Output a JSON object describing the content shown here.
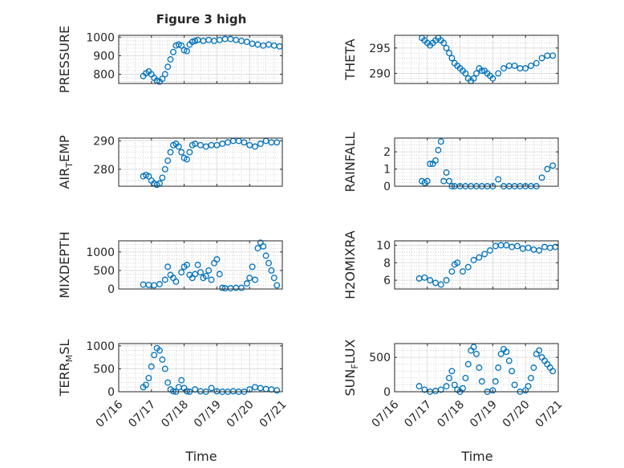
{
  "figure": {
    "title": "Figure 3 high",
    "xlabel": "Time",
    "marker_color": "#0072bd"
  },
  "chart_data": [
    {
      "type": "scatter",
      "ylabel_parts": [
        {
          "t": "PRESSURE"
        }
      ],
      "ylim": [
        750,
        1010
      ],
      "yticks": [
        800,
        900,
        1000
      ],
      "xlim": [
        "07/16",
        "07/21"
      ],
      "xticks": [
        "07/16",
        "07/17",
        "07/18",
        "07/19",
        "07/20",
        "07/21"
      ],
      "x": [
        "07/16 18:00",
        "07/16 20:00",
        "07/16 22:00",
        "07/17 00:00",
        "07/17 02:00",
        "07/17 04:00",
        "07/17 06:00",
        "07/17 08:00",
        "07/17 10:00",
        "07/17 12:00",
        "07/17 14:00",
        "07/17 16:00",
        "07/17 18:00",
        "07/17 20:00",
        "07/17 22:00",
        "07/18 00:00",
        "07/18 02:00",
        "07/18 04:00",
        "07/18 06:00",
        "07/18 08:00",
        "07/18 10:00",
        "07/18 14:00",
        "07/18 18:00",
        "07/18 22:00",
        "07/19 02:00",
        "07/19 06:00",
        "07/19 10:00",
        "07/19 14:00",
        "07/19 18:00",
        "07/19 22:00",
        "07/20 02:00",
        "07/20 06:00",
        "07/20 10:00",
        "07/20 14:00",
        "07/20 18:00",
        "07/20 22:00"
      ],
      "y": [
        790,
        805,
        815,
        800,
        780,
        765,
        760,
        775,
        800,
        840,
        880,
        920,
        955,
        960,
        955,
        930,
        925,
        960,
        975,
        980,
        985,
        980,
        985,
        980,
        985,
        990,
        990,
        985,
        980,
        975,
        965,
        960,
        955,
        960,
        955,
        950
      ]
    },
    {
      "type": "scatter",
      "ylabel_parts": [
        {
          "t": "THETA"
        }
      ],
      "ylim": [
        288,
        297.5
      ],
      "yticks": [
        290,
        295
      ],
      "xlim": [
        "07/16",
        "07/21"
      ],
      "xticks": [
        "07/16",
        "07/17",
        "07/18",
        "07/19",
        "07/20",
        "07/21"
      ],
      "x": [
        "07/16 20:00",
        "07/16 22:00",
        "07/17 00:00",
        "07/17 02:00",
        "07/17 04:00",
        "07/17 06:00",
        "07/17 08:00",
        "07/17 10:00",
        "07/17 12:00",
        "07/17 14:00",
        "07/17 16:00",
        "07/17 18:00",
        "07/17 20:00",
        "07/17 22:00",
        "07/18 00:00",
        "07/18 02:00",
        "07/18 04:00",
        "07/18 06:00",
        "07/18 08:00",
        "07/18 10:00",
        "07/18 12:00",
        "07/18 14:00",
        "07/18 16:00",
        "07/18 18:00",
        "07/18 20:00",
        "07/18 22:00",
        "07/19 00:00",
        "07/19 04:00",
        "07/19 08:00",
        "07/19 12:00",
        "07/19 16:00",
        "07/19 20:00",
        "07/20 00:00",
        "07/20 04:00",
        "07/20 08:00",
        "07/20 12:00",
        "07/20 16:00",
        "07/20 20:00"
      ],
      "y": [
        297,
        296.5,
        296,
        295.5,
        296,
        296.5,
        297,
        296.5,
        296,
        295,
        294,
        293,
        292,
        291.5,
        291,
        290.5,
        290,
        289,
        288.5,
        289,
        290,
        291,
        290.5,
        290.5,
        290,
        289.5,
        289,
        290,
        291,
        291.5,
        291.5,
        291,
        291,
        291.5,
        292,
        293,
        293.5,
        293.5
      ]
    },
    {
      "type": "scatter",
      "ylabel_parts": [
        {
          "t": "AIR"
        },
        {
          "t": "T",
          "sub": true
        },
        {
          "t": "EMP"
        }
      ],
      "ylim": [
        274,
        291
      ],
      "yticks": [
        280,
        290
      ],
      "xlim": [
        "07/16",
        "07/21"
      ],
      "xticks": [
        "07/16",
        "07/17",
        "07/18",
        "07/19",
        "07/20",
        "07/21"
      ],
      "x": [
        "07/16 18:00",
        "07/16 20:00",
        "07/16 22:00",
        "07/17 00:00",
        "07/17 02:00",
        "07/17 04:00",
        "07/17 06:00",
        "07/17 08:00",
        "07/17 10:00",
        "07/17 12:00",
        "07/17 14:00",
        "07/17 16:00",
        "07/17 18:00",
        "07/17 20:00",
        "07/17 22:00",
        "07/18 00:00",
        "07/18 02:00",
        "07/18 04:00",
        "07/18 06:00",
        "07/18 08:00",
        "07/18 12:00",
        "07/18 16:00",
        "07/18 20:00",
        "07/19 00:00",
        "07/19 04:00",
        "07/19 08:00",
        "07/19 12:00",
        "07/19 16:00",
        "07/19 20:00",
        "07/20 00:00",
        "07/20 04:00",
        "07/20 08:00",
        "07/20 12:00",
        "07/20 16:00",
        "07/20 20:00"
      ],
      "y": [
        277.5,
        278,
        277.5,
        276,
        275,
        274.5,
        275,
        277,
        280,
        283,
        286,
        288.5,
        289,
        288,
        286,
        284,
        283.5,
        286,
        288.5,
        289,
        288.5,
        288,
        288.5,
        288.5,
        289,
        289.5,
        290,
        290,
        289.5,
        288.5,
        288,
        289,
        290,
        289.5,
        289.5
      ]
    },
    {
      "type": "scatter",
      "ylabel_parts": [
        {
          "t": "RAINFALL"
        }
      ],
      "ylim": [
        0,
        2.8
      ],
      "yticks": [
        0,
        1,
        2
      ],
      "xlim": [
        "07/16",
        "07/21"
      ],
      "xticks": [
        "07/16",
        "07/17",
        "07/18",
        "07/19",
        "07/20",
        "07/21"
      ],
      "x": [
        "07/16 20:00",
        "07/16 22:00",
        "07/17 00:00",
        "07/17 02:00",
        "07/17 04:00",
        "07/17 06:00",
        "07/17 08:00",
        "07/17 10:00",
        "07/17 12:00",
        "07/17 14:00",
        "07/17 16:00",
        "07/17 18:00",
        "07/17 20:00",
        "07/18 00:00",
        "07/18 04:00",
        "07/18 08:00",
        "07/18 12:00",
        "07/18 16:00",
        "07/18 20:00",
        "07/19 00:00",
        "07/19 04:00",
        "07/19 08:00",
        "07/19 12:00",
        "07/19 16:00",
        "07/19 20:00",
        "07/20 00:00",
        "07/20 04:00",
        "07/20 08:00",
        "07/20 12:00",
        "07/20 16:00",
        "07/20 20:00"
      ],
      "y": [
        0.3,
        0.2,
        0.3,
        1.3,
        1.3,
        1.5,
        2.1,
        2.6,
        0.3,
        0.8,
        0.3,
        0,
        0,
        0,
        0,
        0,
        0,
        0,
        0,
        0,
        0.4,
        0,
        0,
        0,
        0,
        0,
        0,
        0,
        0.5,
        1,
        1.2
      ]
    },
    {
      "type": "scatter",
      "ylabel_parts": [
        {
          "t": "MIXDEPTH"
        }
      ],
      "ylim": [
        0,
        1300
      ],
      "yticks": [
        0,
        500,
        1000
      ],
      "xlim": [
        "07/16",
        "07/21"
      ],
      "xticks": [
        "07/16",
        "07/17",
        "07/18",
        "07/19",
        "07/20",
        "07/21"
      ],
      "x": [
        "07/16 18:00",
        "07/16 22:00",
        "07/17 02:00",
        "07/17 06:00",
        "07/17 10:00",
        "07/17 12:00",
        "07/17 14:00",
        "07/17 16:00",
        "07/17 18:00",
        "07/17 22:00",
        "07/18 00:00",
        "07/18 02:00",
        "07/18 04:00",
        "07/18 06:00",
        "07/18 08:00",
        "07/18 10:00",
        "07/18 12:00",
        "07/18 14:00",
        "07/18 16:00",
        "07/18 18:00",
        "07/18 20:00",
        "07/18 22:00",
        "07/19 00:00",
        "07/19 02:00",
        "07/19 04:00",
        "07/19 06:00",
        "07/19 10:00",
        "07/19 14:00",
        "07/19 18:00",
        "07/19 22:00",
        "07/20 00:00",
        "07/20 02:00",
        "07/20 04:00",
        "07/20 06:00",
        "07/20 08:00",
        "07/20 10:00",
        "07/20 12:00",
        "07/20 14:00",
        "07/20 16:00",
        "07/20 18:00",
        "07/20 20:00"
      ],
      "y": [
        120,
        110,
        100,
        130,
        250,
        600,
        380,
        300,
        200,
        450,
        600,
        650,
        380,
        300,
        400,
        650,
        450,
        300,
        350,
        500,
        250,
        700,
        800,
        400,
        30,
        20,
        20,
        30,
        30,
        150,
        300,
        600,
        250,
        1100,
        1250,
        1150,
        900,
        700,
        500,
        300,
        100
      ]
    },
    {
      "type": "scatter",
      "ylabel_parts": [
        {
          "t": "H2OMIXRA"
        }
      ],
      "ylim": [
        5,
        10.5
      ],
      "yticks": [
        6,
        8,
        10
      ],
      "xlim": [
        "07/16",
        "07/21"
      ],
      "xticks": [
        "07/16",
        "07/17",
        "07/18",
        "07/19",
        "07/20",
        "07/21"
      ],
      "x": [
        "07/16 18:00",
        "07/16 22:00",
        "07/17 02:00",
        "07/17 06:00",
        "07/17 10:00",
        "07/17 14:00",
        "07/17 18:00",
        "07/17 20:00",
        "07/17 22:00",
        "07/18 02:00",
        "07/18 06:00",
        "07/18 10:00",
        "07/18 14:00",
        "07/18 18:00",
        "07/18 22:00",
        "07/19 02:00",
        "07/19 06:00",
        "07/19 10:00",
        "07/19 14:00",
        "07/19 18:00",
        "07/19 22:00",
        "07/20 02:00",
        "07/20 06:00",
        "07/20 10:00",
        "07/20 14:00",
        "07/20 18:00",
        "07/20 22:00"
      ],
      "y": [
        6.2,
        6.3,
        6,
        5.7,
        5.5,
        6,
        7,
        7.8,
        8,
        7,
        7.5,
        8.3,
        8.6,
        9,
        9.4,
        9.9,
        10,
        10,
        9.8,
        9.9,
        9.6,
        9.7,
        9.5,
        9.4,
        9.8,
        9.7,
        9.8
      ]
    },
    {
      "type": "scatter",
      "ylabel_parts": [
        {
          "t": "TERR"
        },
        {
          "t": "M",
          "sub": true
        },
        {
          "t": "SL"
        }
      ],
      "ylim": [
        0,
        1050
      ],
      "yticks": [
        0,
        500,
        1000
      ],
      "xlim": [
        "07/16",
        "07/21"
      ],
      "xticks": [
        "07/16",
        "07/17",
        "07/18",
        "07/19",
        "07/20",
        "07/21"
      ],
      "x": [
        "07/16 18:00",
        "07/16 20:00",
        "07/16 22:00",
        "07/17 00:00",
        "07/17 02:00",
        "07/17 04:00",
        "07/17 06:00",
        "07/17 08:00",
        "07/17 10:00",
        "07/17 12:00",
        "07/17 14:00",
        "07/17 16:00",
        "07/17 18:00",
        "07/17 20:00",
        "07/17 22:00",
        "07/18 00:00",
        "07/18 02:00",
        "07/18 04:00",
        "07/18 08:00",
        "07/18 12:00",
        "07/18 16:00",
        "07/18 20:00",
        "07/19 00:00",
        "07/19 04:00",
        "07/19 08:00",
        "07/19 12:00",
        "07/19 16:00",
        "07/19 20:00",
        "07/20 00:00",
        "07/20 04:00",
        "07/20 08:00",
        "07/20 12:00",
        "07/20 16:00",
        "07/20 20:00"
      ],
      "y": [
        100,
        150,
        300,
        550,
        800,
        950,
        900,
        700,
        500,
        200,
        50,
        10,
        0,
        100,
        250,
        80,
        10,
        0,
        50,
        10,
        0,
        80,
        10,
        0,
        0,
        10,
        0,
        0,
        50,
        100,
        80,
        60,
        50,
        30
      ]
    },
    {
      "type": "scatter",
      "ylabel_parts": [
        {
          "t": "SUN"
        },
        {
          "t": "F",
          "sub": true
        },
        {
          "t": "LUX"
        }
      ],
      "ylim": [
        0,
        700
      ],
      "yticks": [
        0,
        500
      ],
      "xlim": [
        "07/16",
        "07/21"
      ],
      "xticks": [
        "07/16",
        "07/17",
        "07/18",
        "07/19",
        "07/20",
        "07/21"
      ],
      "x": [
        "07/16 18:00",
        "07/16 22:00",
        "07/17 02:00",
        "07/17 06:00",
        "07/17 10:00",
        "07/17 14:00",
        "07/17 16:00",
        "07/17 18:00",
        "07/17 20:00",
        "07/17 22:00",
        "07/18 00:00",
        "07/18 02:00",
        "07/18 04:00",
        "07/18 06:00",
        "07/18 08:00",
        "07/18 10:00",
        "07/18 12:00",
        "07/18 14:00",
        "07/18 16:00",
        "07/18 20:00",
        "07/19 00:00",
        "07/19 02:00",
        "07/19 04:00",
        "07/19 06:00",
        "07/19 08:00",
        "07/19 10:00",
        "07/19 12:00",
        "07/19 14:00",
        "07/19 16:00",
        "07/19 20:00",
        "07/20 00:00",
        "07/20 02:00",
        "07/20 04:00",
        "07/20 06:00",
        "07/20 08:00",
        "07/20 10:00",
        "07/20 12:00",
        "07/20 14:00",
        "07/20 16:00",
        "07/20 18:00",
        "07/20 20:00"
      ],
      "y": [
        80,
        30,
        0,
        10,
        30,
        80,
        200,
        300,
        100,
        30,
        0,
        50,
        200,
        400,
        600,
        650,
        550,
        350,
        150,
        0,
        20,
        150,
        350,
        550,
        620,
        580,
        450,
        300,
        100,
        0,
        20,
        80,
        200,
        350,
        550,
        600,
        500,
        450,
        400,
        350,
        300
      ]
    }
  ]
}
